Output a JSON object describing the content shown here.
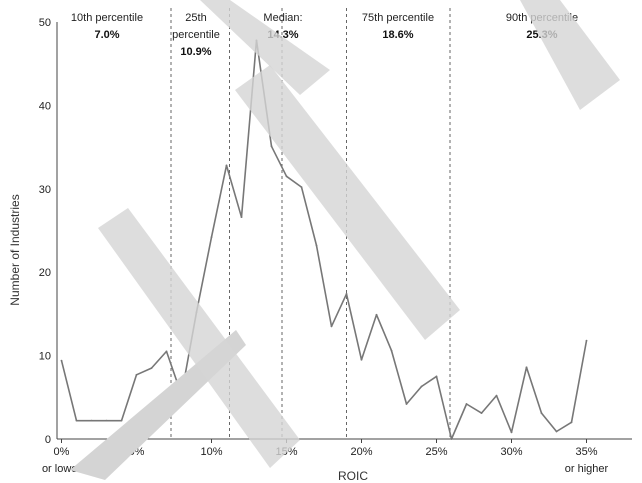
{
  "chart_data": {
    "type": "line",
    "xlabel": "ROIC",
    "ylabel": "Number of Industries",
    "xlim": [
      -0.3,
      36.7
    ],
    "ylim": [
      0,
      50
    ],
    "grid": false,
    "x_ticks": [
      {
        "value": 0,
        "label": "0%",
        "sublabel": "or lower"
      },
      {
        "value": 5,
        "label": "5%"
      },
      {
        "value": 10,
        "label": "10%"
      },
      {
        "value": 15,
        "label": "15%"
      },
      {
        "value": 20,
        "label": "20%"
      },
      {
        "value": 25,
        "label": "25%"
      },
      {
        "value": 30,
        "label": "30%"
      },
      {
        "value": 35,
        "label": "35%",
        "sublabel": "or higher"
      }
    ],
    "y_ticks": [
      0,
      10,
      20,
      30,
      40,
      50
    ],
    "series": [
      {
        "color": "#777777",
        "x": [
          0,
          1,
          2,
          3,
          4,
          5,
          6,
          7,
          8,
          9,
          10,
          11,
          12,
          13,
          14,
          15,
          16,
          17,
          18,
          19,
          20,
          21,
          22,
          23,
          24,
          25,
          26,
          27,
          28,
          29,
          30,
          31,
          32,
          33,
          34,
          35
        ],
        "y": [
          9.4,
          2.2,
          2.2,
          2.2,
          2.2,
          7.7,
          8.5,
          10.5,
          5.3,
          15.2,
          24.2,
          32.8,
          26.6,
          47.8,
          35.1,
          31.5,
          30.2,
          23.2,
          13.5,
          17.4,
          9.5,
          14.9,
          10.6,
          4.2,
          6.3,
          7.5,
          0,
          4.2,
          3.1,
          5.2,
          0.8,
          8.6,
          3.1,
          0.9,
          2.0,
          11.8
        ]
      }
    ],
    "annotations": [
      {
        "x": 7.3,
        "label": "10th percentile",
        "value": "7.0%"
      },
      {
        "x": 11.2,
        "label": "25th percentile",
        "value": "10.9%"
      },
      {
        "x": 14.7,
        "label": "Median:",
        "value": "14.3%"
      },
      {
        "x": 19.0,
        "label": "75th percentile",
        "value": "18.6%"
      },
      {
        "x": 25.9,
        "label": "90th percentile",
        "value": "25.3%"
      }
    ]
  }
}
